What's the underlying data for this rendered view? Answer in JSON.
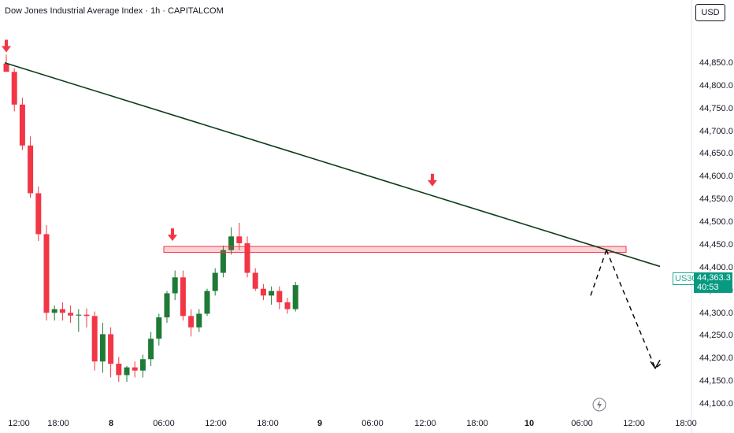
{
  "header": {
    "title": "Dow Jones Industrial Average Index · 1h · CAPITALCOM",
    "currency_button": "USD"
  },
  "price_tag": {
    "symbol": "US30",
    "price": "44,363.3",
    "countdown": "40:53"
  },
  "colors": {
    "up": "#1e7a36",
    "down": "#f23645",
    "trendline": "#0f3d1a",
    "zone": "#f23645",
    "tag": "#089981"
  },
  "chart_data": {
    "type": "candlestick",
    "title": "Dow Jones Industrial Average Index · 1h · CAPITALCOM",
    "ylim": [
      44100,
      44900
    ],
    "y_ticks": [
      "44,850.0",
      "44,800.0",
      "44,750.0",
      "44,700.0",
      "44,650.0",
      "44,600.0",
      "44,550.0",
      "44,500.0",
      "44,450.0",
      "44,400.0",
      "44,350.0",
      "44,300.0",
      "44,250.0",
      "44,200.0",
      "44,150.0",
      "44,100.0"
    ],
    "x_ticks": [
      "12:00",
      "18:00",
      "8",
      "06:00",
      "12:00",
      "18:00",
      "9",
      "06:00",
      "12:00",
      "18:00",
      "10",
      "06:00",
      "12:00",
      "18:00"
    ],
    "candles": [
      [
        44850,
        44870,
        44840,
        44832
      ],
      [
        44832,
        44840,
        44745,
        44760
      ],
      [
        44760,
        44775,
        44660,
        44670
      ],
      [
        44670,
        44690,
        44555,
        44565
      ],
      [
        44565,
        44580,
        44460,
        44475
      ],
      [
        44475,
        44495,
        44285,
        44302
      ],
      [
        44302,
        44318,
        44285,
        44310
      ],
      [
        44310,
        44325,
        44285,
        44302
      ],
      [
        44302,
        44318,
        44280,
        44296
      ],
      [
        44296,
        44310,
        44260,
        44298
      ],
      [
        44298,
        44312,
        44270,
        44295
      ],
      [
        44295,
        44305,
        44175,
        44195
      ],
      [
        44195,
        44280,
        44170,
        44255
      ],
      [
        44255,
        44270,
        44160,
        44190
      ],
      [
        44190,
        44205,
        44150,
        44165
      ],
      [
        44165,
        44185,
        44150,
        44182
      ],
      [
        44182,
        44195,
        44160,
        44175
      ],
      [
        44175,
        44210,
        44160,
        44200
      ],
      [
        44200,
        44260,
        44185,
        44245
      ],
      [
        44245,
        44300,
        44230,
        44292
      ],
      [
        44292,
        44350,
        44280,
        44345
      ],
      [
        44345,
        44395,
        44330,
        44380
      ],
      [
        44380,
        44395,
        44285,
        44295
      ],
      [
        44295,
        44310,
        44250,
        44270
      ],
      [
        44270,
        44310,
        44260,
        44300
      ],
      [
        44300,
        44355,
        44295,
        44350
      ],
      [
        44350,
        44400,
        44340,
        44390
      ],
      [
        44390,
        44450,
        44380,
        44440
      ],
      [
        44440,
        44490,
        44430,
        44470
      ],
      [
        44470,
        44500,
        44440,
        44455
      ],
      [
        44455,
        44470,
        44380,
        44390
      ],
      [
        44390,
        44400,
        44350,
        44355
      ],
      [
        44355,
        44365,
        44330,
        44340
      ],
      [
        44340,
        44360,
        44320,
        44350
      ],
      [
        44350,
        44360,
        44310,
        44325
      ],
      [
        44325,
        44335,
        44300,
        44310
      ],
      [
        44310,
        44370,
        44305,
        44363
      ]
    ],
    "resistance_zone": [
      44435,
      44448
    ],
    "trendline": {
      "start": 44852,
      "end": 44404
    },
    "projection": [
      44440,
      44180,
      44192
    ]
  }
}
